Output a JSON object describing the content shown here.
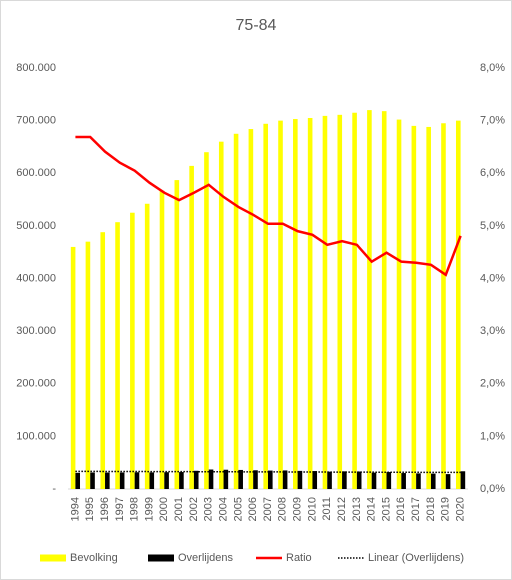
{
  "chart_data": {
    "type": "bar",
    "title": "75-84",
    "categories": [
      "1994",
      "1995",
      "1996",
      "1997",
      "1998",
      "1999",
      "2000",
      "2001",
      "2002",
      "2003",
      "2004",
      "2005",
      "2006",
      "2007",
      "2008",
      "2009",
      "2010",
      "2011",
      "2012",
      "2013",
      "2014",
      "2015",
      "2016",
      "2017",
      "2018",
      "2019",
      "2020"
    ],
    "series": [
      {
        "name": "Bevolking",
        "type": "bar",
        "color": "#ffff00",
        "values": [
          460000,
          470000,
          488000,
          507000,
          525000,
          542000,
          567000,
          587000,
          614000,
          640000,
          660000,
          675000,
          684000,
          694000,
          700000,
          703000,
          705000,
          709000,
          711000,
          715000,
          720000,
          718000,
          702000,
          690000,
          688000,
          695000,
          700000
        ]
      },
      {
        "name": "Overlijdens",
        "type": "bar",
        "color": "#000000",
        "values": [
          30800,
          31400,
          31300,
          31400,
          31800,
          31500,
          31900,
          32200,
          34600,
          37000,
          36600,
          36200,
          35600,
          35000,
          35300,
          34400,
          34100,
          32900,
          33500,
          33200,
          31100,
          32200,
          30300,
          29700,
          29300,
          28300,
          33700
        ]
      },
      {
        "name": "Ratio",
        "type": "line",
        "axis": "y2",
        "color": "#ff0000",
        "values": [
          6.69,
          6.69,
          6.41,
          6.2,
          6.05,
          5.82,
          5.63,
          5.49,
          5.63,
          5.78,
          5.55,
          5.36,
          5.21,
          5.04,
          5.04,
          4.9,
          4.83,
          4.64,
          4.71,
          4.64,
          4.32,
          4.49,
          4.32,
          4.3,
          4.26,
          4.07,
          4.81
        ]
      },
      {
        "name": "Linear (Overlijdens)",
        "type": "line",
        "dash": "dotted",
        "color": "#000000",
        "values": [
          33500,
          33420,
          33350,
          33270,
          33190,
          33120,
          33040,
          32960,
          32880,
          32810,
          32730,
          32650,
          32580,
          32500,
          32420,
          32350,
          32270,
          32190,
          32120,
          32040,
          31960,
          31880,
          31810,
          31730,
          31650,
          31580,
          31500
        ]
      }
    ],
    "ylim": [
      0,
      800000
    ],
    "yticks": [
      {
        "value": 0,
        "label": "-"
      },
      {
        "value": 100000,
        "label": "100.000"
      },
      {
        "value": 200000,
        "label": "200.000"
      },
      {
        "value": 300000,
        "label": "300.000"
      },
      {
        "value": 400000,
        "label": "400.000"
      },
      {
        "value": 500000,
        "label": "500.000"
      },
      {
        "value": 600000,
        "label": "600.000"
      },
      {
        "value": 700000,
        "label": "700.000"
      },
      {
        "value": 800000,
        "label": "800.000"
      }
    ],
    "y2lim": [
      0,
      8
    ],
    "y2ticks": [
      {
        "value": 0,
        "label": "0,0%"
      },
      {
        "value": 1,
        "label": "1,0%"
      },
      {
        "value": 2,
        "label": "2,0%"
      },
      {
        "value": 3,
        "label": "3,0%"
      },
      {
        "value": 4,
        "label": "4,0%"
      },
      {
        "value": 5,
        "label": "5,0%"
      },
      {
        "value": 6,
        "label": "6,0%"
      },
      {
        "value": 7,
        "label": "7,0%"
      },
      {
        "value": 8,
        "label": "8,0%"
      }
    ],
    "legend": "bottom"
  }
}
